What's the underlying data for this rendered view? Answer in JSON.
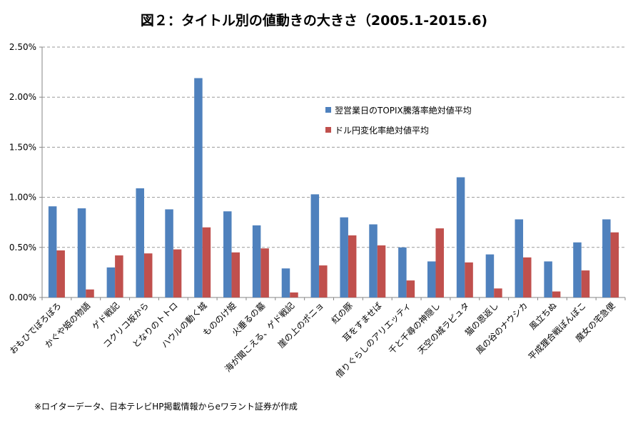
{
  "chart_data": {
    "type": "bar",
    "title": "図２：タイトル別の値動きの大きさ（2005.1-2015.6)",
    "categories": [
      "おもひでぽろぽろ",
      "かぐや姫の物語",
      "ゲド戦記",
      "コクリコ坂から",
      "となりのトトロ",
      "ハウルの動く城",
      "もののけ姫",
      "火垂るの墓",
      "海が聞こえる、ゲド戦記",
      "崖の上のポニョ",
      "紅の豚",
      "耳をすませば",
      "借りぐらしのアリエッティ",
      "千と千尋の神隠し",
      "天空の城ラピュタ",
      "猫の恩返し",
      "風の谷のナウシカ",
      "風立ちぬ",
      "平成狸合戦ぽんぽこ",
      "魔女の宅急便"
    ],
    "series": [
      {
        "name": "翌営業日のTOPIX騰落率絶対値平均",
        "color": "#4f81bd",
        "values": [
          0.91,
          0.89,
          0.3,
          1.09,
          0.88,
          2.19,
          0.86,
          0.72,
          0.29,
          1.03,
          0.8,
          0.73,
          0.5,
          0.36,
          1.2,
          0.43,
          0.78,
          0.36,
          0.55,
          0.78
        ]
      },
      {
        "name": "ドル円変化率絶対値平均",
        "color": "#c0504d",
        "values": [
          0.47,
          0.08,
          0.42,
          0.44,
          0.48,
          0.7,
          0.45,
          0.49,
          0.05,
          0.32,
          0.62,
          0.52,
          0.17,
          0.69,
          0.35,
          0.09,
          0.4,
          0.06,
          0.27,
          0.65
        ]
      }
    ],
    "yticks": [
      "0.00%",
      "0.50%",
      "1.00%",
      "1.50%",
      "2.00%",
      "2.50%"
    ],
    "ylim": [
      0,
      2.5
    ],
    "grid": true,
    "legend_position": "top-right"
  },
  "source_note": "※ロイターデータ、日本テレビHP掲載情報からeワラント証券が作成"
}
